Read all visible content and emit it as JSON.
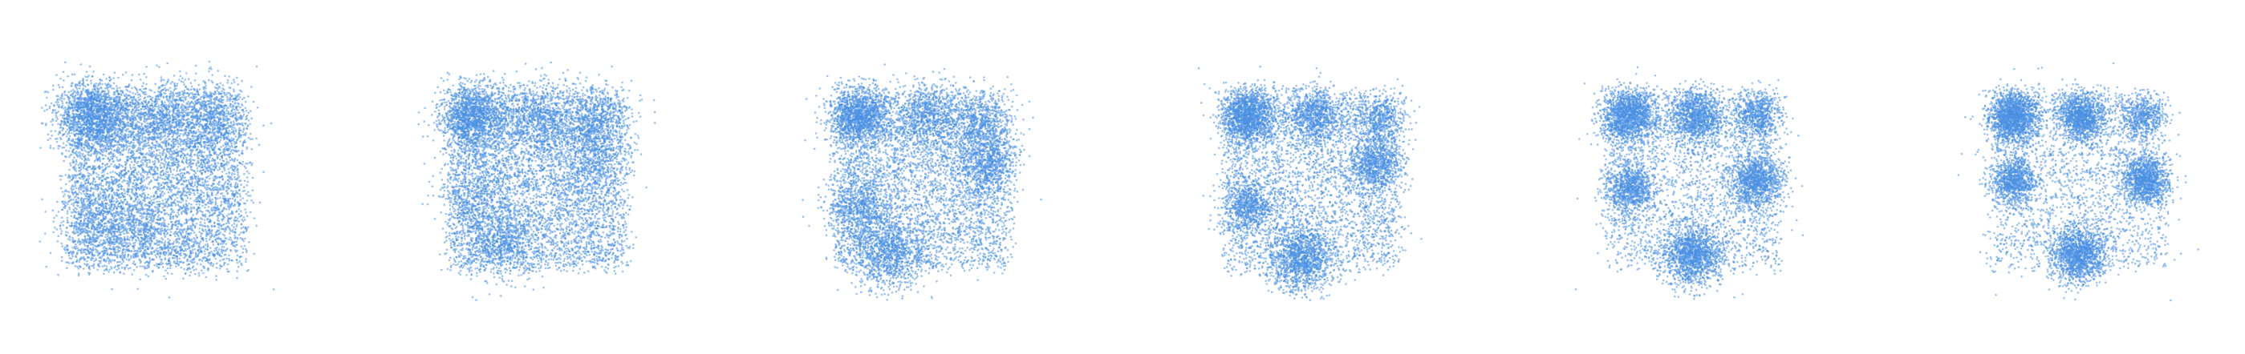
{
  "figure": {
    "background": "#ffffff",
    "point_color": "#4a90e2",
    "point_opacity": 0.55
  },
  "chart_data": [
    {
      "type": "scatter",
      "panel": 1,
      "grid": false,
      "axes_visible": false,
      "xlim": [
        -1.6,
        1.6
      ],
      "ylim": [
        -1.6,
        1.6
      ],
      "points_per_panel": 9000,
      "uniform_fraction": 0.62,
      "outlier_fraction": 0.01,
      "modes": [
        {
          "x": -0.85,
          "y": 0.85,
          "sd": 0.24,
          "weight": 0.16
        },
        {
          "x": 0.0,
          "y": 0.85,
          "sd": 0.26,
          "weight": 0.06
        },
        {
          "x": 0.7,
          "y": 0.85,
          "sd": 0.26,
          "weight": 0.07
        },
        {
          "x": -0.85,
          "y": -0.55,
          "sd": 0.26,
          "weight": 0.05
        },
        {
          "x": -0.2,
          "y": -0.75,
          "sd": 0.28,
          "weight": 0.04
        }
      ]
    },
    {
      "type": "scatter",
      "panel": 2,
      "grid": false,
      "axes_visible": false,
      "xlim": [
        -1.6,
        1.6
      ],
      "ylim": [
        -1.6,
        1.6
      ],
      "points_per_panel": 9000,
      "uniform_fraction": 0.55,
      "outlier_fraction": 0.01,
      "modes": [
        {
          "x": -0.85,
          "y": 0.85,
          "sd": 0.22,
          "weight": 0.16
        },
        {
          "x": 0.0,
          "y": 0.85,
          "sd": 0.24,
          "weight": 0.07
        },
        {
          "x": 0.75,
          "y": 0.8,
          "sd": 0.24,
          "weight": 0.07
        },
        {
          "x": 0.75,
          "y": 0.2,
          "sd": 0.24,
          "weight": 0.05
        },
        {
          "x": -0.5,
          "y": -0.85,
          "sd": 0.24,
          "weight": 0.07
        },
        {
          "x": -0.85,
          "y": -0.2,
          "sd": 0.25,
          "weight": 0.04
        }
      ]
    },
    {
      "type": "scatter",
      "panel": 3,
      "grid": false,
      "axes_visible": false,
      "xlim": [
        -1.6,
        1.6
      ],
      "ylim": [
        -1.6,
        1.6
      ],
      "points_per_panel": 9000,
      "uniform_fraction": 0.45,
      "outlier_fraction": 0.01,
      "modes": [
        {
          "x": -0.85,
          "y": 0.85,
          "sd": 0.2,
          "weight": 0.16
        },
        {
          "x": 0.05,
          "y": 0.85,
          "sd": 0.22,
          "weight": 0.08
        },
        {
          "x": 0.75,
          "y": 0.75,
          "sd": 0.22,
          "weight": 0.06
        },
        {
          "x": 0.85,
          "y": 0.2,
          "sd": 0.2,
          "weight": 0.08
        },
        {
          "x": -0.85,
          "y": -0.35,
          "sd": 0.22,
          "weight": 0.07
        },
        {
          "x": -0.45,
          "y": -1.0,
          "sd": 0.24,
          "weight": 0.1
        }
      ]
    },
    {
      "type": "scatter",
      "panel": 4,
      "grid": false,
      "axes_visible": false,
      "xlim": [
        -1.6,
        1.6
      ],
      "ylim": [
        -1.6,
        1.6
      ],
      "points_per_panel": 9000,
      "uniform_fraction": 0.36,
      "outlier_fraction": 0.01,
      "modes": [
        {
          "x": -0.85,
          "y": 0.85,
          "sd": 0.18,
          "weight": 0.17
        },
        {
          "x": 0.05,
          "y": 0.85,
          "sd": 0.18,
          "weight": 0.09
        },
        {
          "x": 0.9,
          "y": 0.8,
          "sd": 0.17,
          "weight": 0.06
        },
        {
          "x": 0.85,
          "y": 0.2,
          "sd": 0.18,
          "weight": 0.09
        },
        {
          "x": -0.85,
          "y": -0.35,
          "sd": 0.18,
          "weight": 0.08
        },
        {
          "x": -0.15,
          "y": -1.05,
          "sd": 0.22,
          "weight": 0.15
        }
      ]
    },
    {
      "type": "scatter",
      "panel": 5,
      "grid": false,
      "axes_visible": false,
      "xlim": [
        -1.6,
        1.6
      ],
      "ylim": [
        -1.6,
        1.6
      ],
      "points_per_panel": 9000,
      "uniform_fraction": 0.27,
      "outlier_fraction": 0.01,
      "modes": [
        {
          "x": -0.85,
          "y": 0.85,
          "sd": 0.18,
          "weight": 0.17
        },
        {
          "x": 0.05,
          "y": 0.85,
          "sd": 0.17,
          "weight": 0.12
        },
        {
          "x": 0.85,
          "y": 0.85,
          "sd": 0.16,
          "weight": 0.07
        },
        {
          "x": 0.85,
          "y": 0.0,
          "sd": 0.17,
          "weight": 0.12
        },
        {
          "x": -0.85,
          "y": -0.1,
          "sd": 0.16,
          "weight": 0.09
        },
        {
          "x": 0.0,
          "y": -1.0,
          "sd": 0.2,
          "weight": 0.16
        }
      ]
    },
    {
      "type": "scatter",
      "panel": 6,
      "grid": false,
      "axes_visible": false,
      "xlim": [
        -1.6,
        1.6
      ],
      "ylim": [
        -1.6,
        1.6
      ],
      "points_per_panel": 9000,
      "uniform_fraction": 0.24,
      "outlier_fraction": 0.01,
      "modes": [
        {
          "x": -0.85,
          "y": 0.85,
          "sd": 0.17,
          "weight": 0.18
        },
        {
          "x": 0.05,
          "y": 0.85,
          "sd": 0.16,
          "weight": 0.13
        },
        {
          "x": 0.85,
          "y": 0.85,
          "sd": 0.15,
          "weight": 0.06
        },
        {
          "x": 0.9,
          "y": 0.0,
          "sd": 0.16,
          "weight": 0.13
        },
        {
          "x": -0.85,
          "y": 0.0,
          "sd": 0.15,
          "weight": 0.1
        },
        {
          "x": 0.0,
          "y": -1.0,
          "sd": 0.18,
          "weight": 0.16
        }
      ]
    }
  ]
}
